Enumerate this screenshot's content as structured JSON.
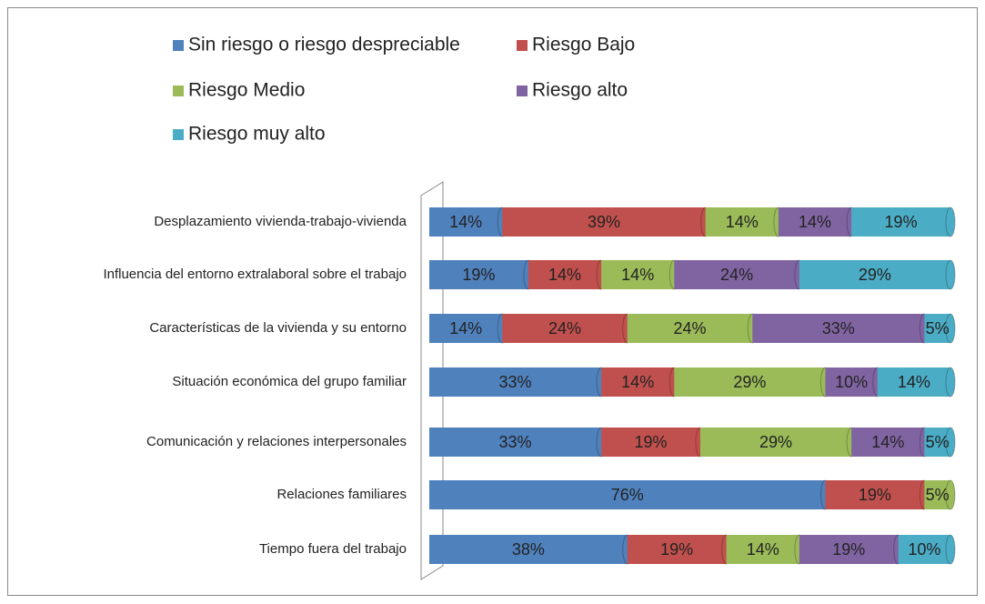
{
  "chart_data": {
    "type": "bar",
    "orientation": "horizontal",
    "stacked": true,
    "categories": [
      "Desplazamiento vivienda-trabajo-vivienda",
      "Influencia del entorno extralaboral sobre el trabajo",
      "Características de la vivienda y su entorno",
      "Situación económica del grupo familiar",
      "Comunicación y relaciones interpersonales",
      "Relaciones familiares",
      "Tiempo fuera del trabajo"
    ],
    "xlim": [
      0,
      100
    ],
    "series": [
      {
        "name": "Sin riesgo o riesgo despreciable",
        "color": "#4f81bd",
        "values": [
          14,
          19,
          14,
          33,
          33,
          76,
          38
        ],
        "value_labels": [
          "14%",
          "19%",
          "14%",
          "33%",
          "33%",
          "76%",
          "38%"
        ]
      },
      {
        "name": "Riesgo Bajo",
        "color": "#c0504d",
        "values": [
          39,
          14,
          24,
          14,
          19,
          19,
          19
        ],
        "value_labels": [
          "39%",
          "14%",
          "24%",
          "14%",
          "19%",
          "19%",
          "19%"
        ]
      },
      {
        "name": "Riesgo Medio",
        "color": "#9bbb59",
        "values": [
          14,
          14,
          24,
          29,
          29,
          5,
          14
        ],
        "value_labels": [
          "14%",
          "14%",
          "24%",
          "29%",
          "29%",
          "5%",
          "14%"
        ]
      },
      {
        "name": "Riesgo alto",
        "color": "#8064a2",
        "values": [
          14,
          24,
          33,
          10,
          14,
          null,
          19
        ],
        "value_labels": [
          "14%",
          "24%",
          "33%",
          "10%",
          "14%",
          null,
          "19%"
        ]
      },
      {
        "name": "Riesgo muy alto",
        "color": "#4bacc6",
        "values": [
          19,
          29,
          5,
          14,
          5,
          null,
          10
        ],
        "value_labels": [
          "19%",
          "29%",
          "5%",
          "14%",
          "5%",
          null,
          "10%"
        ]
      }
    ],
    "legend": "top"
  }
}
